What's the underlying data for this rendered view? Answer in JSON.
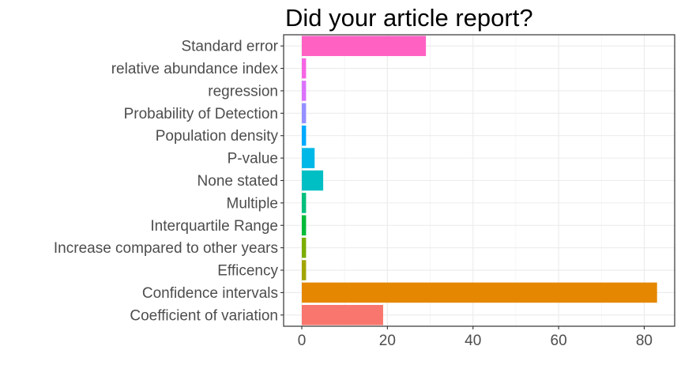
{
  "chart_data": {
    "type": "bar",
    "orientation": "horizontal",
    "title": "Did your article report?",
    "xlabel": "",
    "ylabel": "",
    "xlim": [
      0,
      85
    ],
    "x_ticks": [
      0,
      20,
      40,
      60,
      80
    ],
    "grid": true,
    "legend": "none",
    "categories": [
      "Standard error",
      "relative abundance index",
      "regression",
      "Probability of Detection",
      "Population density",
      "P-value",
      "None stated",
      "Multiple",
      "Interquartile Range",
      "Increase compared to other years",
      "Efficency",
      "Confidence intervals",
      "Coefficient of variation"
    ],
    "values": [
      29,
      1,
      1,
      1,
      1,
      3,
      5,
      1,
      1,
      1,
      1,
      83,
      19
    ],
    "colors": [
      "#ff61c3",
      "#f564e3",
      "#db72fb",
      "#9590ff",
      "#00a9ff",
      "#00b8e7",
      "#00bfc4",
      "#00bf7d",
      "#00ba38",
      "#7cae00",
      "#a3a500",
      "#e58700",
      "#f8766d"
    ]
  }
}
